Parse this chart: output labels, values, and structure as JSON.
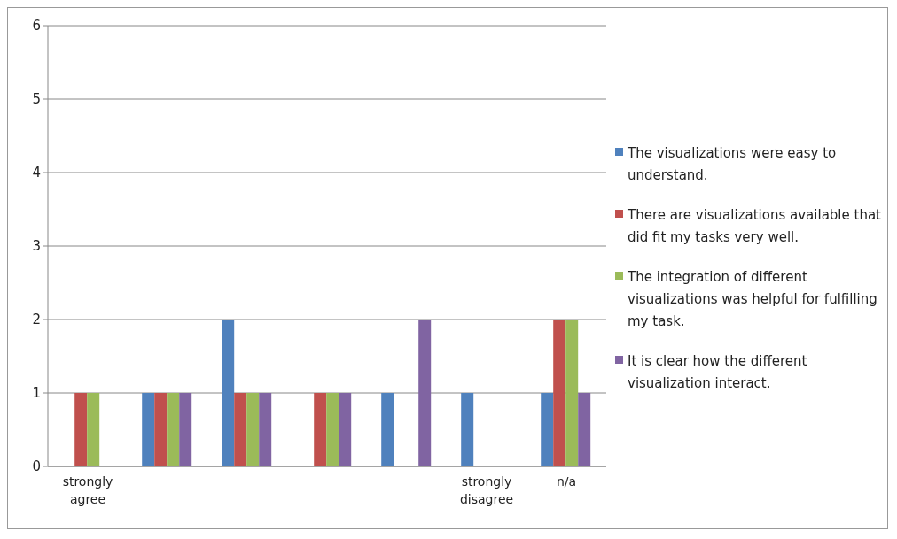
{
  "chart_data": {
    "type": "bar",
    "categories": [
      "strongly agree",
      null,
      null,
      null,
      null,
      "strongly disagree",
      "n/a"
    ],
    "series": [
      {
        "name": "The visualizations were easy to understand.",
        "color": "#4f81bd",
        "values": [
          0,
          1,
          2,
          0,
          1,
          1,
          1
        ]
      },
      {
        "name": "There are visualizations available that did fit my tasks very well.",
        "color": "#c0504d",
        "values": [
          1,
          1,
          1,
          1,
          0,
          0,
          2
        ]
      },
      {
        "name": "The integration of different visualizations was helpful for fulfilling my task.",
        "color": "#9bbb59",
        "values": [
          1,
          1,
          1,
          1,
          0,
          0,
          2
        ]
      },
      {
        "name": "It is clear how the different visualization interact.",
        "color": "#8064a2",
        "values": [
          0,
          1,
          1,
          1,
          2,
          0,
          1
        ]
      }
    ],
    "ylim": [
      0,
      6
    ],
    "yticks": [
      0,
      1,
      2,
      3,
      4,
      5,
      6
    ],
    "grid": "y",
    "legend": "right"
  }
}
